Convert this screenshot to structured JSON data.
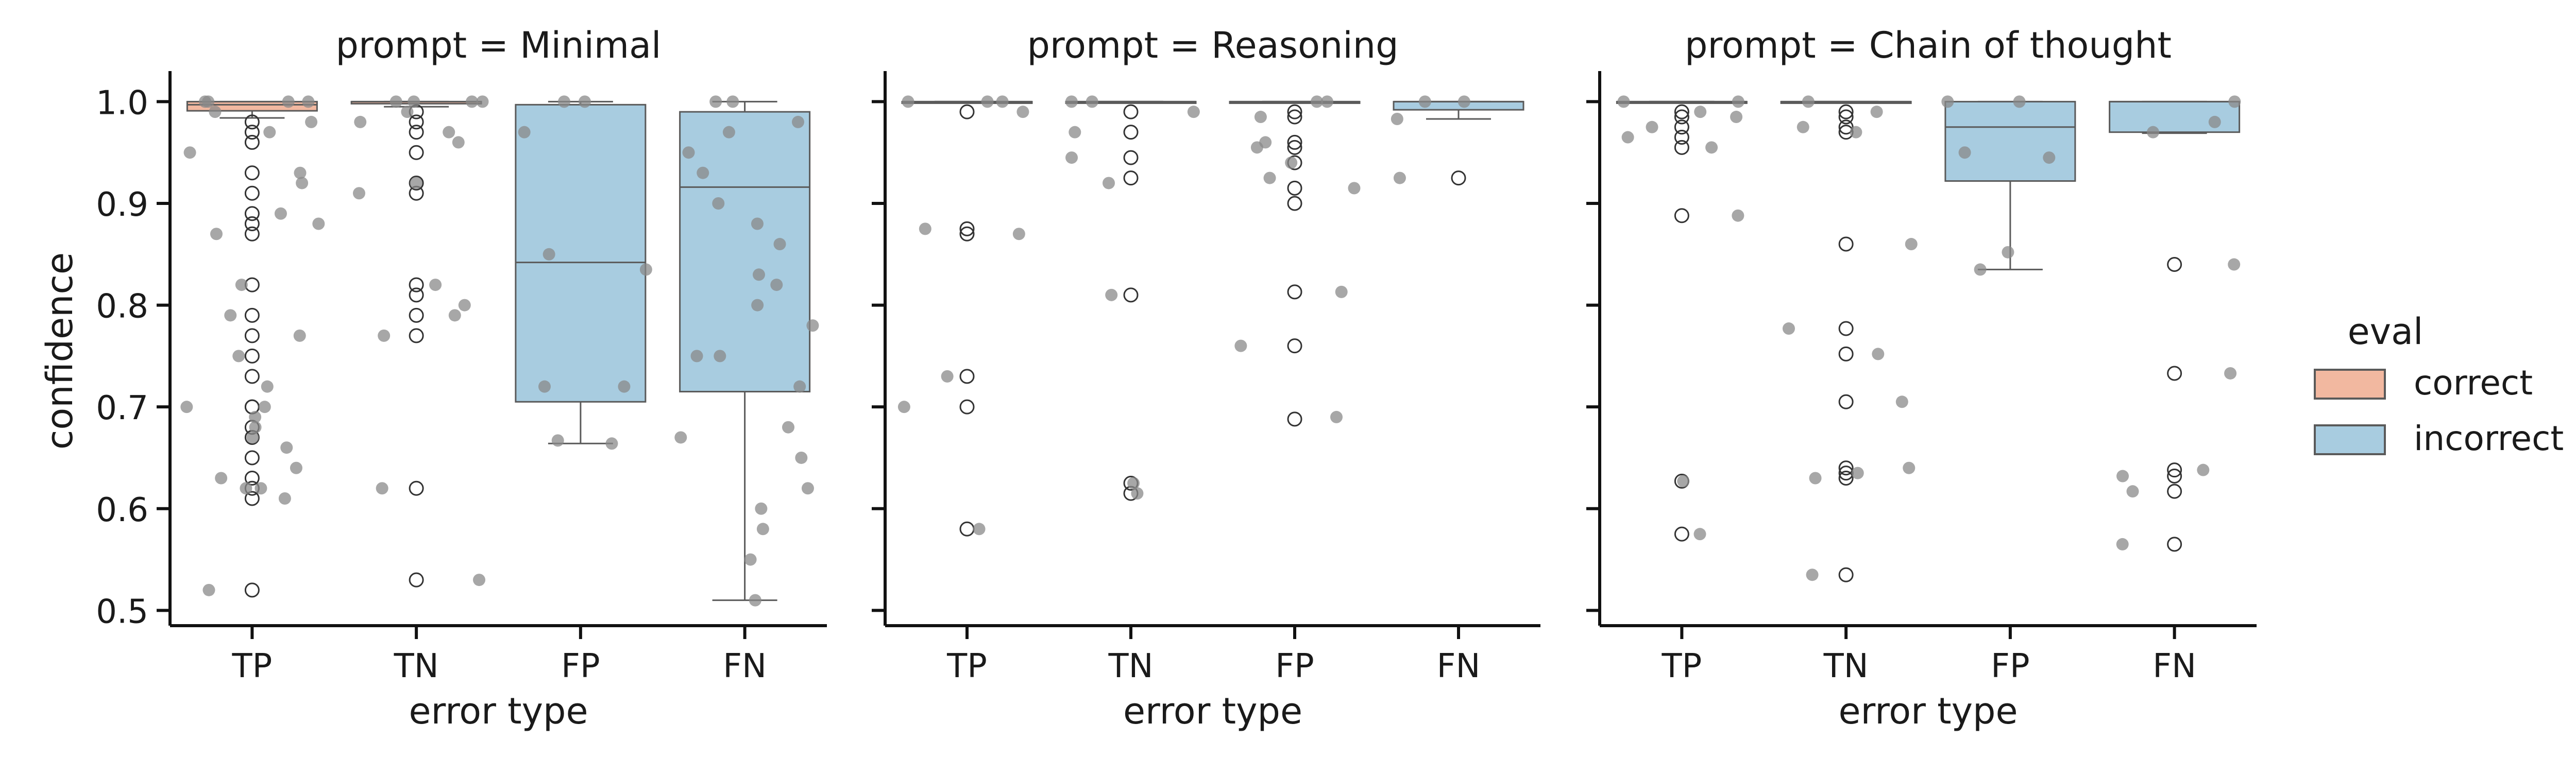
{
  "chart_data": {
    "type": "box-strip",
    "facet_prefix": "prompt = ",
    "facets": [
      "Minimal",
      "Reasoning",
      "Chain of thought"
    ],
    "categories": [
      "TP",
      "TN",
      "FP",
      "FN"
    ],
    "xlabel": "error type",
    "ylabel": "confidence",
    "ylim": [
      0.485,
      1.025
    ],
    "yticks": [
      0.5,
      0.6,
      0.7,
      0.8,
      0.9,
      1.0
    ],
    "ytick_labels": [
      "0.5",
      "0.6",
      "0.7",
      "0.8",
      "0.9",
      "1.0"
    ],
    "legend": {
      "title": "eval",
      "placement": "right",
      "entries": [
        {
          "label": "correct",
          "color": "#f2b8a0"
        },
        {
          "label": "incorrect",
          "color": "#a8cce0"
        }
      ]
    },
    "colors": {
      "correct": "#f2b8a0",
      "incorrect": "#a8cce0",
      "box_edge": "#5a5a5a",
      "strip_point": "#8a8a8a"
    },
    "panels": [
      {
        "prompt": "Minimal",
        "groups": [
          {
            "category": "TP",
            "eval": "correct",
            "box": {
              "q1": 0.991,
              "median": 0.997,
              "q3": 1.0,
              "whisker_low": 0.984,
              "whisker_high": 1.0
            },
            "outliers": [
              0.52,
              0.61,
              0.62,
              0.63,
              0.65,
              0.67,
              0.68,
              0.7,
              0.7,
              0.73,
              0.75,
              0.77,
              0.79,
              0.82,
              0.87,
              0.88,
              0.89,
              0.91,
              0.93,
              0.96,
              0.97,
              0.98
            ],
            "strip": [
              0.52,
              0.61,
              0.62,
              0.62,
              0.63,
              0.64,
              0.66,
              0.67,
              0.68,
              0.69,
              0.7,
              0.7,
              0.72,
              0.75,
              0.77,
              0.79,
              0.82,
              0.87,
              0.88,
              0.89,
              0.92,
              0.93,
              0.95,
              0.97,
              0.98,
              0.99,
              1.0,
              1.0,
              1.0,
              1.0
            ]
          },
          {
            "category": "TN",
            "eval": "correct",
            "box": {
              "q1": 0.998,
              "median": 1.0,
              "q3": 1.0,
              "whisker_low": 0.995,
              "whisker_high": 1.0
            },
            "outliers": [
              0.53,
              0.62,
              0.77,
              0.79,
              0.81,
              0.82,
              0.91,
              0.92,
              0.95,
              0.97,
              0.98,
              0.99
            ],
            "strip": [
              0.53,
              0.62,
              0.77,
              0.79,
              0.8,
              0.82,
              0.91,
              0.92,
              0.96,
              0.97,
              0.98,
              0.99,
              1.0,
              1.0,
              1.0,
              1.0
            ]
          },
          {
            "category": "FP",
            "eval": "incorrect",
            "box": {
              "q1": 0.705,
              "median": 0.842,
              "q3": 0.997,
              "whisker_low": 0.664,
              "whisker_high": 1.0
            },
            "outliers": [],
            "strip": [
              0.664,
              0.667,
              0.72,
              0.72,
              0.835,
              0.85,
              0.97,
              1.0,
              1.0
            ]
          },
          {
            "category": "FN",
            "eval": "incorrect",
            "box": {
              "q1": 0.715,
              "median": 0.916,
              "q3": 0.99,
              "whisker_low": 0.51,
              "whisker_high": 1.0
            },
            "outliers": [],
            "strip": [
              0.51,
              0.55,
              0.58,
              0.6,
              0.62,
              0.65,
              0.67,
              0.68,
              0.72,
              0.75,
              0.75,
              0.78,
              0.8,
              0.82,
              0.83,
              0.86,
              0.88,
              0.9,
              0.93,
              0.95,
              0.97,
              0.98,
              1.0,
              1.0
            ]
          }
        ]
      },
      {
        "prompt": "Reasoning",
        "groups": [
          {
            "category": "TP",
            "eval": "correct",
            "box": {
              "q1": 1.0,
              "median": 1.0,
              "q3": 1.0,
              "whisker_low": 1.0,
              "whisker_high": 1.0
            },
            "outliers": [
              0.58,
              0.7,
              0.73,
              0.87,
              0.875,
              0.99
            ],
            "strip": [
              0.58,
              0.7,
              0.73,
              0.87,
              0.875,
              0.99,
              1.0,
              1.0,
              1.0
            ]
          },
          {
            "category": "TN",
            "eval": "correct",
            "box": {
              "q1": 1.0,
              "median": 1.0,
              "q3": 1.0,
              "whisker_low": 1.0,
              "whisker_high": 1.0
            },
            "outliers": [
              0.615,
              0.625,
              0.81,
              0.925,
              0.945,
              0.97,
              0.99
            ],
            "strip": [
              0.615,
              0.625,
              0.81,
              0.92,
              0.945,
              0.97,
              0.99,
              1.0,
              1.0
            ]
          },
          {
            "category": "FP",
            "eval": "incorrect",
            "box": {
              "q1": 1.0,
              "median": 1.0,
              "q3": 1.0,
              "whisker_low": 1.0,
              "whisker_high": 1.0
            },
            "outliers": [
              0.688,
              0.76,
              0.813,
              0.9,
              0.915,
              0.94,
              0.955,
              0.96,
              0.985,
              0.99
            ],
            "strip": [
              0.69,
              0.76,
              0.813,
              0.915,
              0.925,
              0.94,
              0.955,
              0.96,
              0.985,
              1.0,
              1.0
            ]
          },
          {
            "category": "FN",
            "eval": "incorrect",
            "box": {
              "q1": 0.992,
              "median": 1.0,
              "q3": 1.0,
              "whisker_low": 0.983,
              "whisker_high": 1.0
            },
            "outliers": [
              0.925
            ],
            "strip": [
              0.925,
              0.983,
              1.0,
              1.0
            ]
          }
        ]
      },
      {
        "prompt": "Chain of thought",
        "groups": [
          {
            "category": "TP",
            "eval": "correct",
            "box": {
              "q1": 1.0,
              "median": 1.0,
              "q3": 1.0,
              "whisker_low": 1.0,
              "whisker_high": 1.0
            },
            "outliers": [
              0.575,
              0.627,
              0.888,
              0.955,
              0.965,
              0.975,
              0.985,
              0.99
            ],
            "strip": [
              0.575,
              0.627,
              0.888,
              0.955,
              0.965,
              0.975,
              0.985,
              0.99,
              1.0,
              1.0
            ]
          },
          {
            "category": "TN",
            "eval": "correct",
            "box": {
              "q1": 1.0,
              "median": 1.0,
              "q3": 1.0,
              "whisker_low": 1.0,
              "whisker_high": 1.0
            },
            "outliers": [
              0.535,
              0.63,
              0.635,
              0.64,
              0.705,
              0.752,
              0.777,
              0.86,
              0.97,
              0.975,
              0.985,
              0.99
            ],
            "strip": [
              0.535,
              0.63,
              0.635,
              0.64,
              0.705,
              0.752,
              0.777,
              0.86,
              0.97,
              0.975,
              0.99,
              1.0
            ]
          },
          {
            "category": "FP",
            "eval": "incorrect",
            "box": {
              "q1": 0.922,
              "median": 0.975,
              "q3": 1.0,
              "whisker_low": 0.835,
              "whisker_high": 1.0
            },
            "outliers": [],
            "strip": [
              0.835,
              0.852,
              0.945,
              0.95,
              1.0,
              1.0
            ]
          },
          {
            "category": "FN",
            "eval": "incorrect",
            "box": {
              "q1": 0.97,
              "median": 1.0,
              "q3": 1.0,
              "whisker_low": 0.969,
              "whisker_high": 1.0
            },
            "outliers": [
              0.565,
              0.617,
              0.632,
              0.638,
              0.733,
              0.84
            ],
            "strip": [
              0.565,
              0.617,
              0.632,
              0.638,
              0.733,
              0.84,
              0.97,
              0.98,
              1.0
            ]
          }
        ]
      }
    ]
  }
}
